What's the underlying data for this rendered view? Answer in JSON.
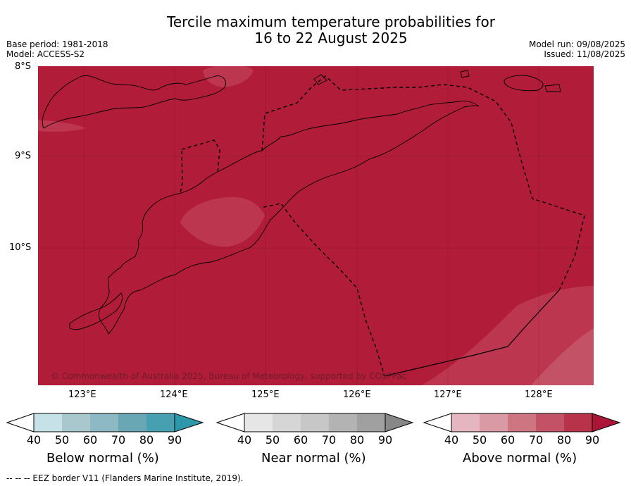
{
  "title_line1": "Tercile maximum temperature probabilities for",
  "title_line2": "16 to 22 August 2025",
  "base_period": "Base period: 1981-2018",
  "model": "Model: ACCESS-S2",
  "model_run": "Model run: 09/08/2025",
  "issued": "Issued: 11/08/2025",
  "lat_labels": [
    "8°S",
    "9°S",
    "10°S"
  ],
  "lon_labels": [
    "123°E",
    "124°E",
    "125°E",
    "126°E",
    "127°E",
    "128°E"
  ],
  "copyright": "© Commonwealth of Australia 2025, Bureau of Meteorology, supported by COSPPac",
  "colors": {
    "above_90": "#b11c38",
    "above_80": "#bd3650",
    "ocean_dominant": "#b11c38"
  },
  "legends": [
    {
      "title": "Below normal (%)",
      "ticks": [
        "40",
        "50",
        "60",
        "70",
        "80",
        "90"
      ],
      "colors": [
        "#c6e1e7",
        "#a8c8ce",
        "#8cb9c3",
        "#6aa7b5",
        "#46a0b2",
        "#2e97ab"
      ]
    },
    {
      "title": "Near normal (%)",
      "ticks": [
        "40",
        "50",
        "60",
        "70",
        "80",
        "90"
      ],
      "colors": [
        "#e6e6e6",
        "#d6d6d6",
        "#c7c7c7",
        "#b3b3b3",
        "#a0a0a0",
        "#878787"
      ]
    },
    {
      "title": "Above normal (%)",
      "ticks": [
        "40",
        "50",
        "60",
        "70",
        "80",
        "90"
      ],
      "colors": [
        "#e5b6bf",
        "#d99aa5",
        "#cd7580",
        "#c35266",
        "#b8334a",
        "#ad1538"
      ]
    }
  ],
  "eez_note": "--  --  -- EEZ border V11 (Flanders Marine Institute, 2019)."
}
